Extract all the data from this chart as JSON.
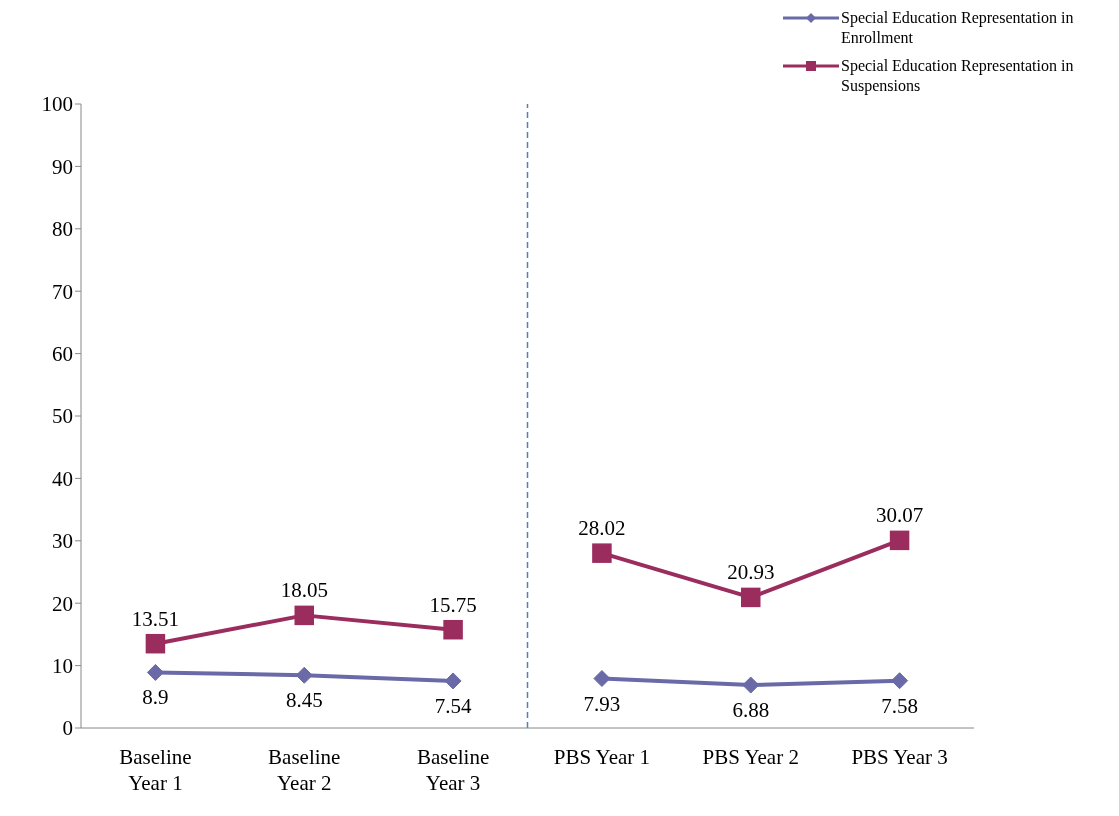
{
  "chart_data": {
    "type": "line",
    "categories": [
      "Baseline Year 1",
      "Baseline Year 2",
      "Baseline Year 3",
      "PBS Year 1",
      "PBS Year 2",
      "PBS Year 3"
    ],
    "series": [
      {
        "name": "Special Education Representation in Enrollment",
        "color": "#6a6aa8",
        "marker": "diamond",
        "values": [
          8.9,
          8.45,
          7.54,
          null,
          null,
          null
        ]
      },
      {
        "name": "Special Education Representation in Suspensions",
        "color": "#9b2d5e",
        "marker": "square",
        "values": [
          13.51,
          18.05,
          15.75,
          null,
          null,
          null
        ]
      },
      {
        "color": "#6a6aa8",
        "marker": "diamond",
        "values": [
          null,
          null,
          null,
          7.93,
          6.88,
          7.58
        ]
      },
      {
        "color": "#9b2d5e",
        "marker": "square",
        "values": [
          null,
          null,
          null,
          28.02,
          20.93,
          30.07
        ]
      }
    ],
    "ylim": [
      0,
      100
    ],
    "yticks": [
      0,
      10,
      20,
      30,
      40,
      50,
      60,
      70,
      80,
      90,
      100
    ],
    "ref_lines": [
      {
        "axis": "x",
        "value": "PBS Year 1",
        "color": "#4f81bd",
        "line_style": "dashed"
      }
    ],
    "grid": false,
    "legend": "top right",
    "data_labels": true
  }
}
